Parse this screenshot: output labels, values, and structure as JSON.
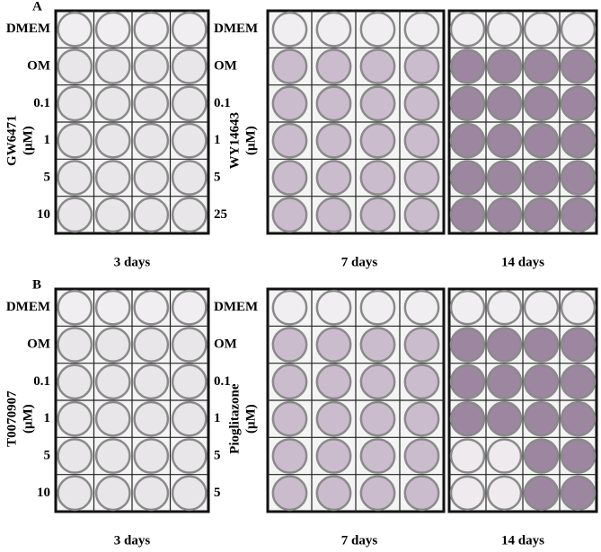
{
  "panels": [
    {
      "label": "A",
      "left_rows": [
        "DMEM",
        "OM",
        "0.1",
        "1",
        "5",
        "10"
      ],
      "left_compound": "GW6471",
      "left_unit": "(μM)",
      "right_rows": [
        "DMEM",
        "OM",
        "0.1",
        "1",
        "5",
        "25"
      ],
      "right_compound": "WY14643",
      "right_unit": "(μM)",
      "days": [
        "3 days",
        "7 days",
        "14 days"
      ]
    },
    {
      "label": "B",
      "left_rows": [
        "DMEM",
        "OM",
        "0.1",
        "1",
        "5",
        "10"
      ],
      "left_compound": "T0070907",
      "left_unit": "(μM)",
      "right_rows": [
        "DMEM",
        "OM",
        "0.1",
        "1",
        "5",
        "5"
      ],
      "right_compound": "Pioglitazone",
      "right_unit": "(μM)",
      "days": [
        "3 days",
        "7 days",
        "14 days"
      ]
    }
  ]
}
